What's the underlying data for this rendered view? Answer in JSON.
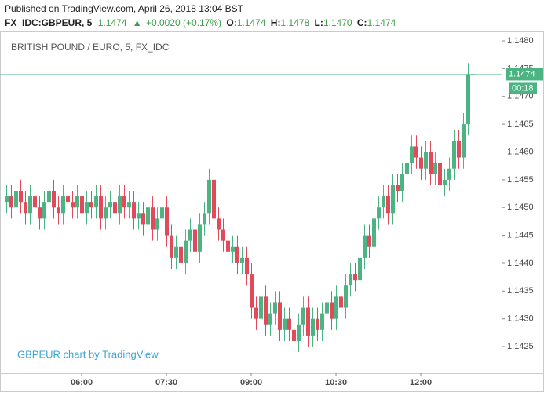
{
  "chart_data": {
    "type": "candlestick",
    "published": "Published on TradingView.com, April 26, 2018 13:04 BST",
    "symbol": "FX_IDC:GBPEUR, 5",
    "last_text": "1.1474",
    "change": "+0.0020 (+0.17%)",
    "ohlc_labels": [
      "O:",
      "H:",
      "L:",
      "C:"
    ],
    "ohlc_values": [
      "1.1474",
      "1.1478",
      "1.1470",
      "1.1474"
    ],
    "title": "BRITISH POUND / EURO, 5, FX_IDC",
    "watermark": "GBPEUR chart by TradingView",
    "last_price": 1.1474,
    "countdown": "00:18",
    "up_color": "#4cb483",
    "down_color": "#e2495b",
    "grid": false,
    "x": [
      280,
      285,
      290,
      295,
      300,
      305,
      310,
      315,
      320,
      325,
      330,
      335,
      340,
      345,
      350,
      355,
      360,
      365,
      370,
      375,
      380,
      385,
      390,
      395,
      400,
      405,
      410,
      415,
      420,
      425,
      430,
      435,
      440,
      445,
      450,
      455,
      460,
      465,
      470,
      475,
      480,
      485,
      490,
      495,
      500,
      505,
      510,
      515,
      520,
      525,
      530,
      535,
      540,
      545,
      550,
      555,
      560,
      565,
      570,
      575,
      580,
      585,
      590,
      595,
      600,
      605,
      610,
      615,
      620,
      625,
      630,
      635,
      640,
      645,
      650,
      655,
      660,
      665,
      670,
      675,
      680,
      685,
      690,
      695,
      700,
      705,
      710,
      715,
      720,
      725,
      730,
      735,
      740,
      745,
      750,
      755,
      760,
      765,
      770,
      775
    ],
    "open": [
      1.1451,
      1.1452,
      1.145,
      1.1453,
      1.1451,
      1.1449,
      1.1452,
      1.145,
      1.1448,
      1.1451,
      1.1453,
      1.145,
      1.1449,
      1.1452,
      1.1451,
      1.145,
      1.1452,
      1.1449,
      1.1451,
      1.145,
      1.1452,
      1.1448,
      1.145,
      1.1451,
      1.1449,
      1.1452,
      1.145,
      1.1451,
      1.1448,
      1.1449,
      1.1447,
      1.145,
      1.1446,
      1.1448,
      1.145,
      1.1445,
      1.1441,
      1.1443,
      1.144,
      1.1444,
      1.1446,
      1.1442,
      1.1447,
      1.1449,
      1.1455,
      1.1448,
      1.1446,
      1.1444,
      1.1442,
      1.1443,
      1.144,
      1.1441,
      1.1438,
      1.1432,
      1.143,
      1.1434,
      1.1429,
      1.1431,
      1.1433,
      1.1428,
      1.143,
      1.1428,
      1.1426,
      1.1429,
      1.1432,
      1.1427,
      1.143,
      1.1428,
      1.1431,
      1.1433,
      1.143,
      1.1434,
      1.1432,
      1.1436,
      1.1438,
      1.1437,
      1.1441,
      1.1445,
      1.1443,
      1.1448,
      1.145,
      1.1452,
      1.1449,
      1.1454,
      1.1453,
      1.1456,
      1.1458,
      1.1461,
      1.1459,
      1.1457,
      1.146,
      1.1456,
      1.1458,
      1.1454,
      1.1455,
      1.1457,
      1.1462,
      1.1459,
      1.1465,
      1.1474
    ],
    "high": [
      1.1454,
      1.1454,
      1.1455,
      1.1455,
      1.1453,
      1.1454,
      1.1454,
      1.1452,
      1.1453,
      1.1455,
      1.1455,
      1.1452,
      1.1454,
      1.1454,
      1.1453,
      1.1454,
      1.1454,
      1.1453,
      1.1453,
      1.1454,
      1.1454,
      1.1452,
      1.1453,
      1.1453,
      1.1454,
      1.1454,
      1.1453,
      1.1453,
      1.1451,
      1.1451,
      1.1452,
      1.1452,
      1.145,
      1.1452,
      1.1452,
      1.1447,
      1.1445,
      1.1445,
      1.1446,
      1.1448,
      1.1448,
      1.1449,
      1.1451,
      1.1457,
      1.1457,
      1.145,
      1.1448,
      1.1446,
      1.1445,
      1.1445,
      1.1443,
      1.1443,
      1.144,
      1.1434,
      1.1436,
      1.1436,
      1.1433,
      1.1435,
      1.1435,
      1.1432,
      1.1432,
      1.143,
      1.1431,
      1.1434,
      1.1434,
      1.1432,
      1.1432,
      1.1433,
      1.1435,
      1.1435,
      1.1436,
      1.1436,
      1.1438,
      1.144,
      1.144,
      1.1443,
      1.1447,
      1.1447,
      1.145,
      1.1452,
      1.1454,
      1.1454,
      1.1456,
      1.1456,
      1.1458,
      1.146,
      1.1463,
      1.1463,
      1.1461,
      1.1462,
      1.1462,
      1.146,
      1.146,
      1.1457,
      1.1459,
      1.1464,
      1.1464,
      1.1467,
      1.1476,
      1.1478
    ],
    "low": [
      1.1449,
      1.1448,
      1.1448,
      1.1449,
      1.1447,
      1.1447,
      1.1448,
      1.1446,
      1.1446,
      1.1449,
      1.1448,
      1.1447,
      1.1447,
      1.1449,
      1.1448,
      1.1448,
      1.1447,
      1.1447,
      1.1448,
      1.1448,
      1.1446,
      1.1446,
      1.1448,
      1.1447,
      1.1447,
      1.1448,
      1.1448,
      1.1446,
      1.1446,
      1.1445,
      1.1445,
      1.1444,
      1.1444,
      1.1446,
      1.1443,
      1.1439,
      1.1439,
      1.1438,
      1.1438,
      1.1442,
      1.144,
      1.144,
      1.1445,
      1.1447,
      1.1446,
      1.1444,
      1.1442,
      1.144,
      1.144,
      1.1438,
      1.1438,
      1.1436,
      1.143,
      1.1428,
      1.1428,
      1.1427,
      1.1427,
      1.1429,
      1.1426,
      1.1426,
      1.1426,
      1.1424,
      1.1424,
      1.1427,
      1.1425,
      1.1425,
      1.1426,
      1.1426,
      1.1429,
      1.1428,
      1.1428,
      1.143,
      1.143,
      1.1434,
      1.1435,
      1.1435,
      1.1439,
      1.1441,
      1.1441,
      1.1446,
      1.1448,
      1.1447,
      1.1447,
      1.1451,
      1.1451,
      1.1454,
      1.1456,
      1.1457,
      1.1455,
      1.1455,
      1.1454,
      1.1454,
      1.1452,
      1.1452,
      1.1453,
      1.1455,
      1.1457,
      1.1457,
      1.1463,
      1.147
    ],
    "close": [
      1.1452,
      1.145,
      1.1453,
      1.1451,
      1.1449,
      1.1452,
      1.145,
      1.1448,
      1.1451,
      1.1453,
      1.145,
      1.1449,
      1.1452,
      1.1451,
      1.145,
      1.1452,
      1.1449,
      1.1451,
      1.145,
      1.1452,
      1.1448,
      1.145,
      1.1451,
      1.1449,
      1.1452,
      1.145,
      1.1451,
      1.1448,
      1.1449,
      1.1447,
      1.145,
      1.1446,
      1.1448,
      1.145,
      1.1445,
      1.1441,
      1.1443,
      1.144,
      1.1444,
      1.1446,
      1.1442,
      1.1447,
      1.1449,
      1.1455,
      1.1448,
      1.1446,
      1.1444,
      1.1442,
      1.1443,
      1.144,
      1.1441,
      1.1438,
      1.1432,
      1.143,
      1.1434,
      1.1429,
      1.1431,
      1.1433,
      1.1428,
      1.143,
      1.1428,
      1.1426,
      1.1429,
      1.1432,
      1.1427,
      1.143,
      1.1428,
      1.1431,
      1.1433,
      1.143,
      1.1434,
      1.1432,
      1.1436,
      1.1438,
      1.1437,
      1.1441,
      1.1445,
      1.1443,
      1.1448,
      1.145,
      1.1452,
      1.1449,
      1.1454,
      1.1453,
      1.1456,
      1.1458,
      1.1461,
      1.1459,
      1.1457,
      1.146,
      1.1456,
      1.1458,
      1.1454,
      1.1455,
      1.1457,
      1.1462,
      1.1459,
      1.1465,
      1.1474,
      1.1474
    ],
    "xlim": [
      273.3,
      805.8
    ],
    "xticks": [
      {
        "value": 360,
        "label": "06:00"
      },
      {
        "value": 450,
        "label": "07:30"
      },
      {
        "value": 540,
        "label": "09:00"
      },
      {
        "value": 630,
        "label": "10:30"
      },
      {
        "value": 720,
        "label": "12:00"
      }
    ],
    "ylim": [
      1.14202,
      1.14817
    ],
    "yticks": [
      1.1425,
      {
        "value": 1.143,
        "label": "1.1430"
      },
      1.1435,
      {
        "value": 1.144,
        "label": "1.1440"
      },
      1.1445,
      {
        "value": 1.145,
        "label": "1.1450"
      },
      1.1455,
      {
        "value": 1.146,
        "label": "1.1460"
      },
      1.1465,
      {
        "value": 1.147,
        "label": "1.1470"
      },
      1.1475,
      {
        "value": 1.148,
        "label": "1.1480"
      }
    ]
  }
}
